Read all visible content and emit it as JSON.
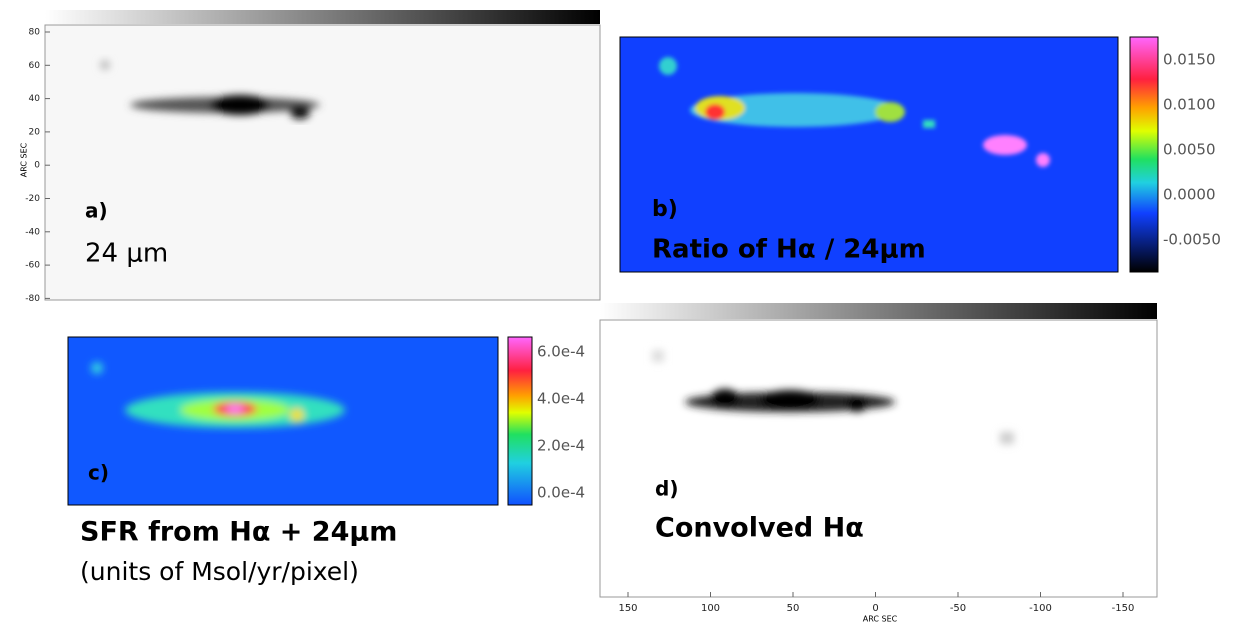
{
  "panels": [
    {
      "letter": "a)",
      "caption": "24 μm",
      "axis_title": "ARC SEC",
      "yticks": [
        "80",
        "60",
        "40",
        "20",
        "0",
        "-20",
        "-40",
        "-60",
        "-80"
      ]
    },
    {
      "letter": "b)",
      "caption": "Ratio of Hα / 24μm",
      "colorbar_ticks": [
        "0.0150",
        "0.0100",
        "0.0050",
        "0.0000",
        "-0.0050"
      ]
    },
    {
      "letter": "c)",
      "caption": "SFR from Hα + 24μm",
      "subcaption": "(units of Msol/yr/pixel)",
      "colorbar_ticks": [
        "6.0e-4",
        "4.0e-4",
        "2.0e-4",
        "0.0e-4"
      ]
    },
    {
      "letter": "d)",
      "caption": "Convolved Hα",
      "axis_title": "ARC SEC",
      "xticks": [
        "150",
        "100",
        "50",
        "0",
        "-50",
        "-100",
        "-150"
      ]
    }
  ]
}
